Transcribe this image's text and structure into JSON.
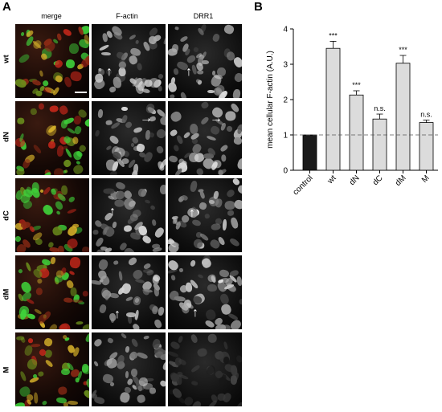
{
  "panel_a": {
    "letter": "A",
    "columns": [
      "merge",
      "F-actin",
      "DRR1"
    ],
    "rows": [
      "wt",
      "dN",
      "dC",
      "dM",
      "M"
    ]
  },
  "panel_b": {
    "letter": "B"
  },
  "colors": {
    "control_bar": "#1a1a1a",
    "bar_fill": "#dcdcdc",
    "merge_green": "#3fd13a",
    "merge_red": "#c0261a",
    "merge_yellow": "#d6b12a"
  },
  "chart_data": {
    "type": "bar",
    "categories": [
      "control",
      "wt",
      "dN",
      "dC",
      "dM",
      "M"
    ],
    "values": [
      1.0,
      3.45,
      2.13,
      1.45,
      3.03,
      1.35
    ],
    "errors": [
      0,
      0.2,
      0.12,
      0.14,
      0.22,
      0.07
    ],
    "significance": [
      "",
      "***",
      "***",
      "n.s.",
      "***",
      "n.s."
    ],
    "ylabel": "mean cellular F-actin (A.U.)",
    "xlabel": "",
    "ylim": [
      0,
      4
    ],
    "yticks": [
      0,
      1,
      2,
      3,
      4
    ],
    "reference_line": 1,
    "grid": false
  }
}
